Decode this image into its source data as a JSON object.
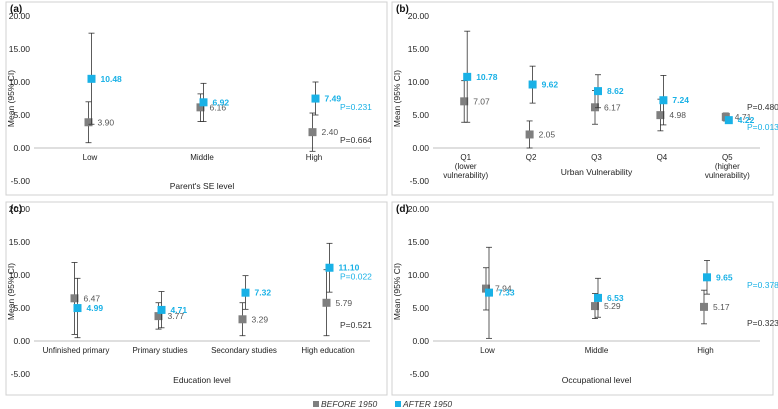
{
  "colors": {
    "before": "#7f7f7f",
    "after": "#19b1e6",
    "whisker": "#333333"
  },
  "legend": {
    "before_label": "BEFORE 1950",
    "after_label": "AFTER 1950"
  },
  "chart_data": [
    {
      "panel": "(a)",
      "type": "scatter",
      "ylabel": "Mean (95% CI)",
      "xlabel": "Parent's SE level",
      "ylim": [
        -5,
        20
      ],
      "yticks": [
        "-5.00",
        "0.00",
        "5.00",
        "10.00",
        "15.00",
        "20.00"
      ],
      "categories": [
        [
          "Low"
        ],
        [
          "Middle"
        ],
        [
          "High"
        ]
      ],
      "series": [
        {
          "name": "BEFORE 1950",
          "values": [
            3.9,
            6.16,
            2.4
          ],
          "labels": [
            "3.90",
            "6.16",
            "2.40"
          ],
          "ci": [
            [
              0.8,
              7.0
            ],
            [
              4.0,
              8.2
            ],
            [
              -0.5,
              5.3
            ]
          ]
        },
        {
          "name": "AFTER 1950",
          "values": [
            10.48,
            6.92,
            7.49
          ],
          "labels": [
            "10.48",
            "6.92",
            "7.49"
          ],
          "ci": [
            [
              3.6,
              17.4
            ],
            [
              4.0,
              9.8
            ],
            [
              5.0,
              10.0
            ]
          ]
        }
      ],
      "pvalues": [
        {
          "series": "AFTER 1950",
          "text": "P=0.231",
          "y": 6.2
        },
        {
          "series": "BEFORE 1950",
          "text": "P=0.664",
          "y": 1.2
        }
      ]
    },
    {
      "panel": "(b)",
      "type": "scatter",
      "ylabel": "Mean (95% CI)",
      "xlabel": "Urban Vulnerability",
      "ylim": [
        -5,
        20
      ],
      "yticks": [
        "-5.00",
        "0.00",
        "5.00",
        "10.00",
        "15.00",
        "20.00"
      ],
      "categories": [
        [
          "Q1",
          "(lower",
          "vulnerability)"
        ],
        [
          "Q2"
        ],
        [
          "Q3"
        ],
        [
          "Q4"
        ],
        [
          "Q5",
          "(higher",
          "vulnerability)"
        ]
      ],
      "series": [
        {
          "name": "BEFORE 1950",
          "values": [
            7.07,
            2.05,
            6.17,
            4.98,
            4.71
          ],
          "labels": [
            "7.07",
            "2.05",
            "6.17",
            "4.98",
            "4.71"
          ],
          "ci": [
            [
              3.9,
              10.2
            ],
            [
              0.0,
              4.1
            ],
            [
              3.6,
              8.7
            ],
            [
              2.6,
              7.4
            ],
            [
              4.1,
              5.3
            ]
          ]
        },
        {
          "name": "AFTER 1950",
          "values": [
            10.78,
            9.62,
            8.62,
            7.24,
            4.22
          ],
          "labels": [
            "10.78",
            "9.62",
            "8.62",
            "7.24",
            "4.22"
          ],
          "ci": [
            [
              3.9,
              17.7
            ],
            [
              6.8,
              12.4
            ],
            [
              6.1,
              11.1
            ],
            [
              3.5,
              11.0
            ],
            [
              3.8,
              4.7
            ]
          ]
        }
      ],
      "pvalues": [
        {
          "series": "BEFORE 1950",
          "text": "P=0.480",
          "y": 6.2
        },
        {
          "series": "AFTER 1950",
          "text": "P=0.013",
          "y": 3.2
        }
      ]
    },
    {
      "panel": "(c)",
      "type": "scatter",
      "ylabel": "Mean (95% CI)",
      "xlabel": "Education level",
      "ylim": [
        -5,
        20
      ],
      "yticks": [
        "-5.00",
        "0.00",
        "5.00",
        "10.00",
        "15.00",
        "20.00"
      ],
      "categories": [
        [
          "Unfinished primary"
        ],
        [
          "Primary studies"
        ],
        [
          "Secondary studies"
        ],
        [
          "High education"
        ]
      ],
      "series": [
        {
          "name": "BEFORE 1950",
          "values": [
            6.47,
            3.77,
            3.29,
            5.79
          ],
          "labels": [
            "6.47",
            "3.77",
            "3.29",
            "5.79"
          ],
          "ci": [
            [
              1.0,
              11.9
            ],
            [
              1.8,
              5.8
            ],
            [
              0.8,
              5.8
            ],
            [
              0.8,
              10.8
            ]
          ]
        },
        {
          "name": "AFTER 1950",
          "values": [
            4.99,
            4.71,
            7.32,
            11.1
          ],
          "labels": [
            "4.99",
            "4.71",
            "7.32",
            "11.10"
          ],
          "ci": [
            [
              0.5,
              9.5
            ],
            [
              2.0,
              7.5
            ],
            [
              4.8,
              9.9
            ],
            [
              7.4,
              14.8
            ]
          ]
        }
      ],
      "pvalues": [
        {
          "series": "AFTER 1950",
          "text": "P=0.022",
          "y": 9.8
        },
        {
          "series": "BEFORE 1950",
          "text": "P=0.521",
          "y": 2.4
        }
      ]
    },
    {
      "panel": "(d)",
      "type": "scatter",
      "ylabel": "Mean (95% CI)",
      "xlabel": "Occupational level",
      "ylim": [
        -5,
        20
      ],
      "yticks": [
        "-5.00",
        "0.00",
        "5.00",
        "10.00",
        "15.00",
        "20.00"
      ],
      "categories": [
        [
          "Low"
        ],
        [
          "Middle"
        ],
        [
          "High"
        ]
      ],
      "series": [
        {
          "name": "BEFORE 1950",
          "values": [
            7.94,
            5.29,
            5.17
          ],
          "labels": [
            "7.94",
            "5.29",
            "5.17"
          ],
          "ci": [
            [
              4.7,
              11.1
            ],
            [
              3.4,
              7.2
            ],
            [
              2.6,
              7.7
            ]
          ]
        },
        {
          "name": "AFTER 1950",
          "values": [
            7.33,
            6.53,
            9.65
          ],
          "labels": [
            "7.33",
            "6.53",
            "9.65"
          ],
          "ci": [
            [
              0.4,
              14.2
            ],
            [
              3.6,
              9.5
            ],
            [
              7.1,
              12.2
            ]
          ]
        }
      ],
      "pvalues": [
        {
          "series": "AFTER 1950",
          "text": "P=0.378",
          "y": 8.5
        },
        {
          "series": "BEFORE 1950",
          "text": "P=0.323",
          "y": 2.7
        }
      ]
    }
  ]
}
